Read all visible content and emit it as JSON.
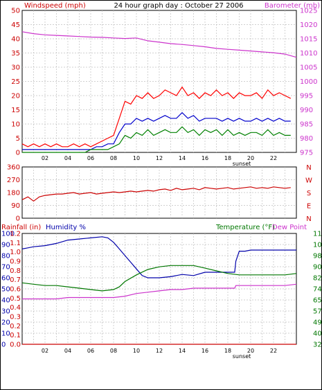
{
  "colors": {
    "wind": "#ff0000",
    "wind_avg": "#0000cc",
    "wind_min": "#008000",
    "barometer": "#cc33cc",
    "direction": "#cc0000",
    "rain": "#cc0000",
    "humidity": "#0000aa",
    "temperature": "#007700",
    "dewpoint": "#cc33cc",
    "grid": "#c0c0c0"
  },
  "chart_data": [
    {
      "type": "line",
      "title": "24 hour graph day : October 27 2006",
      "left_axis_label": "Windspeed (mph)",
      "right_axis_label": "Barometer (mb)",
      "left_ticks": [
        "0",
        "5",
        "10",
        "15",
        "20",
        "25",
        "30",
        "35",
        "40",
        "45",
        "50"
      ],
      "right_ticks": [
        "975",
        "980",
        "985",
        "990",
        "995",
        "1000",
        "1005",
        "1010",
        "1015",
        "1020",
        "1025"
      ],
      "ylim_left": [
        0,
        50
      ],
      "ylim_right": [
        975,
        1025
      ],
      "x_ticks": [
        "02",
        "04",
        "06",
        "08",
        "10",
        "12",
        "14",
        "16",
        "18",
        "20",
        "22"
      ],
      "x_marker": "sunset",
      "series": [
        {
          "name": "Wind gust (red)",
          "axis": "left",
          "x": [
            0,
            0.5,
            1,
            1.5,
            2,
            2.5,
            3,
            3.5,
            4,
            4.5,
            5,
            5.5,
            6,
            6.5,
            7,
            7.5,
            8,
            8.5,
            9,
            9.5,
            10,
            10.5,
            11,
            11.5,
            12,
            12.5,
            13,
            13.5,
            14,
            14.5,
            15,
            15.5,
            16,
            16.5,
            17,
            17.5,
            18,
            18.5,
            19,
            19.5,
            20,
            20.5,
            21,
            21.5,
            22,
            22.5,
            23,
            23.5
          ],
          "values": [
            3,
            2,
            3,
            2,
            3,
            2,
            3,
            2,
            2,
            3,
            2,
            3,
            2,
            3,
            4,
            5,
            6,
            12,
            18,
            17,
            20,
            19,
            21,
            19,
            20,
            22,
            21,
            20,
            23,
            20,
            21,
            19,
            21,
            20,
            22,
            20,
            21,
            19,
            21,
            20,
            20,
            21,
            19,
            22,
            20,
            21,
            20,
            19
          ]
        },
        {
          "name": "Wind avg (blue)",
          "axis": "left",
          "x": [
            0,
            0.5,
            1,
            1.5,
            2,
            2.5,
            3,
            3.5,
            4,
            4.5,
            5,
            5.5,
            6,
            6.5,
            7,
            7.5,
            8,
            8.5,
            9,
            9.5,
            10,
            10.5,
            11,
            11.5,
            12,
            12.5,
            13,
            13.5,
            14,
            14.5,
            15,
            15.5,
            16,
            16.5,
            17,
            17.5,
            18,
            18.5,
            19,
            19.5,
            20,
            20.5,
            21,
            21.5,
            22,
            22.5,
            23,
            23.5
          ],
          "values": [
            1,
            1,
            1,
            1,
            1,
            1,
            1,
            1,
            1,
            1,
            1,
            1,
            1,
            2,
            2,
            3,
            3,
            7,
            10,
            10,
            12,
            11,
            12,
            11,
            12,
            13,
            12,
            12,
            14,
            12,
            13,
            11,
            12,
            12,
            12,
            11,
            12,
            11,
            12,
            11,
            11,
            12,
            11,
            12,
            11,
            12,
            11,
            11
          ]
        },
        {
          "name": "Wind min (green)",
          "axis": "left",
          "x": [
            0,
            0.5,
            1,
            1.5,
            2,
            2.5,
            3,
            3.5,
            4,
            4.5,
            5,
            5.5,
            6,
            6.5,
            7,
            7.5,
            8,
            8.5,
            9,
            9.5,
            10,
            10.5,
            11,
            11.5,
            12,
            12.5,
            13,
            13.5,
            14,
            14.5,
            15,
            15.5,
            16,
            16.5,
            17,
            17.5,
            18,
            18.5,
            19,
            19.5,
            20,
            20.5,
            21,
            21.5,
            22,
            22.5,
            23,
            23.5
          ],
          "values": [
            0,
            0,
            0,
            0,
            0,
            0,
            0,
            0,
            0,
            0,
            0,
            0,
            1,
            1,
            1,
            1,
            2,
            3,
            6,
            5,
            7,
            6,
            8,
            6,
            7,
            8,
            7,
            7,
            9,
            7,
            8,
            6,
            8,
            7,
            8,
            6,
            8,
            6,
            7,
            6,
            7,
            7,
            6,
            8,
            6,
            7,
            6,
            6
          ]
        },
        {
          "name": "Barometer (magenta)",
          "axis": "right",
          "x": [
            0,
            1,
            2,
            3,
            4,
            5,
            6,
            7,
            8,
            9,
            10,
            11,
            12,
            13,
            14,
            15,
            16,
            17,
            18,
            19,
            20,
            21,
            22,
            23,
            24
          ],
          "values": [
            1017.5,
            1016.8,
            1016.4,
            1016.2,
            1016,
            1015.8,
            1015.6,
            1015.5,
            1015.3,
            1015.1,
            1015.3,
            1014.3,
            1013.8,
            1013.3,
            1013,
            1012.6,
            1012.2,
            1011.6,
            1011.3,
            1011,
            1010.7,
            1010.4,
            1010.1,
            1009.6,
            1008.5
          ]
        }
      ]
    },
    {
      "type": "line",
      "left_ticks": [
        "360",
        "270",
        "180",
        "90",
        "0"
      ],
      "right_ticks": [
        "N",
        "W",
        "S",
        "E",
        "N"
      ],
      "ylim": [
        0,
        360
      ],
      "series": [
        {
          "name": "Wind direction (red)",
          "x": [
            0,
            0.5,
            1,
            1.5,
            2,
            2.5,
            3,
            3.5,
            4,
            4.5,
            5,
            5.5,
            6,
            6.5,
            7,
            7.5,
            8,
            8.5,
            9,
            9.5,
            10,
            10.5,
            11,
            11.5,
            12,
            12.5,
            13,
            13.5,
            14,
            14.5,
            15,
            15.5,
            16,
            16.5,
            17,
            17.5,
            18,
            18.5,
            19,
            19.5,
            20,
            20.5,
            21,
            21.5,
            22,
            22.5,
            23,
            23.5
          ],
          "values": [
            130,
            150,
            120,
            150,
            160,
            165,
            170,
            170,
            175,
            180,
            170,
            175,
            180,
            170,
            175,
            180,
            185,
            180,
            185,
            190,
            185,
            190,
            195,
            190,
            200,
            205,
            195,
            210,
            200,
            205,
            210,
            200,
            215,
            210,
            205,
            210,
            215,
            205,
            210,
            215,
            220,
            210,
            215,
            210,
            220,
            215,
            210,
            215
          ]
        }
      ]
    },
    {
      "type": "line",
      "left_axis_label": "Rainfall (in)",
      "left_axis_label2": "Humidity %",
      "right_axis_label": "Temperature (°F)",
      "right_axis_label2": "Dew Point",
      "humidity_ticks": [
        "100",
        "90",
        "80",
        "70",
        "60",
        "50",
        "40",
        "30",
        "20",
        "10",
        "0"
      ],
      "rain_ticks": [
        "1.2",
        "1.1",
        "1.0",
        "0.9",
        "0.8",
        "0.7",
        "0.6",
        "0.5",
        "0.4",
        "0.3",
        "0.2",
        "0.1",
        "0.0"
      ],
      "temp_ticks": [
        "115",
        "107",
        "98",
        "90",
        "82",
        "74",
        "65",
        "57",
        "49",
        "40",
        "32"
      ],
      "ylim_humidity": [
        0,
        100
      ],
      "ylim_rain": [
        0,
        1.2
      ],
      "ylim_temp": [
        32,
        115
      ],
      "x_ticks": [
        "02",
        "04",
        "06",
        "08",
        "10",
        "12",
        "14",
        "16",
        "18",
        "20",
        "22"
      ],
      "x_marker": "sunset",
      "series": [
        {
          "name": "Humidity (blue)",
          "axis": "humidity",
          "x": [
            0,
            0.5,
            1,
            2,
            3,
            4,
            5,
            6,
            7,
            7.5,
            8,
            8.5,
            9,
            9.5,
            10,
            10.5,
            11,
            12,
            13,
            14,
            15,
            16,
            17,
            18,
            18.6,
            18.7,
            19,
            19.5,
            20,
            21,
            22,
            23,
            24
          ],
          "values": [
            86,
            87,
            88,
            89,
            91,
            94,
            95,
            96,
            97,
            96,
            92,
            86,
            80,
            74,
            68,
            62,
            60,
            60,
            61,
            63,
            62,
            65,
            65,
            65,
            65,
            75,
            84,
            84,
            85,
            85,
            85,
            85,
            85
          ]
        },
        {
          "name": "Temperature (green)",
          "axis": "temp",
          "x": [
            0,
            1,
            2,
            3,
            4,
            5,
            6,
            7,
            8,
            8.5,
            9,
            10,
            11,
            12,
            13,
            14,
            15,
            16,
            17,
            18,
            19,
            20,
            21,
            22,
            23,
            24
          ],
          "values": [
            78,
            77,
            76,
            76,
            75,
            74,
            73,
            72,
            73,
            75,
            79,
            84,
            88,
            90,
            91,
            91,
            91,
            89,
            87,
            85,
            84,
            84,
            84,
            84,
            84,
            85
          ]
        },
        {
          "name": "Dew Point (magenta)",
          "axis": "temp",
          "x": [
            0,
            1,
            2,
            3,
            4,
            5,
            6,
            7,
            8,
            9,
            10,
            11,
            12,
            13,
            14,
            15,
            16,
            17,
            18,
            18.6,
            18.7,
            19,
            20,
            21,
            22,
            23,
            24
          ],
          "values": [
            66,
            66,
            66,
            66,
            67,
            67,
            67,
            67,
            67,
            68,
            70,
            71,
            72,
            73,
            73,
            74,
            74,
            74,
            74,
            74,
            76,
            76,
            76,
            76,
            76,
            76,
            77
          ]
        },
        {
          "name": "Rainfall (red)",
          "axis": "rain",
          "x": [
            0,
            24
          ],
          "values": [
            0,
            0
          ]
        }
      ]
    }
  ]
}
